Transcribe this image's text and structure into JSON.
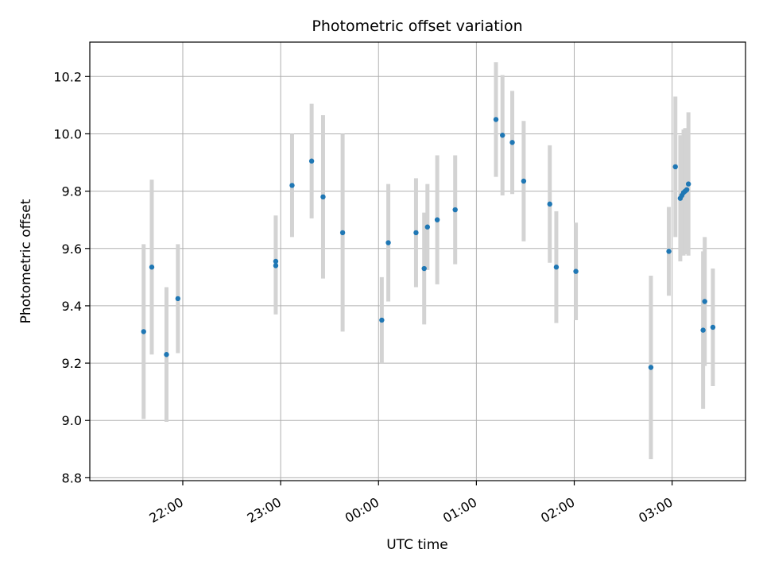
{
  "chart_data": {
    "type": "scatter",
    "title": "Photometric offset variation",
    "xlabel": "UTC time",
    "ylabel": "Photometric offset",
    "x_axis_kind": "time",
    "x_unit": "hours (UTC), times after midnight written past 24:00",
    "xlim": [
      "21:03",
      "27:45"
    ],
    "ylim": [
      8.79,
      10.32
    ],
    "x_ticks": [
      {
        "hour": 22,
        "label": "22:00"
      },
      {
        "hour": 23,
        "label": "23:00"
      },
      {
        "hour": 24,
        "label": "00:00"
      },
      {
        "hour": 25,
        "label": "01:00"
      },
      {
        "hour": 26,
        "label": "02:00"
      },
      {
        "hour": 27,
        "label": "03:00"
      }
    ],
    "y_ticks": [
      8.8,
      9.0,
      9.2,
      9.4,
      9.6,
      9.8,
      10.0,
      10.2
    ],
    "y_tick_labels": [
      "8.8",
      "9.0",
      "9.2",
      "9.4",
      "9.6",
      "9.8",
      "10.0",
      "10.2"
    ],
    "grid": true,
    "marker_color": "#1f77b4",
    "errorbar_color": "#d3d3d3",
    "points": [
      {
        "t": "21:36",
        "y": 9.31,
        "err": 0.305
      },
      {
        "t": "21:41",
        "y": 9.535,
        "err": 0.305
      },
      {
        "t": "21:50",
        "y": 9.23,
        "err": 0.235
      },
      {
        "t": "21:57",
        "y": 9.425,
        "err": 0.19
      },
      {
        "t": "22:57",
        "y": 9.54,
        "err": 0.17
      },
      {
        "t": "22:57",
        "y": 9.555,
        "err": 0.16
      },
      {
        "t": "23:07",
        "y": 9.82,
        "err": 0.18
      },
      {
        "t": "23:19",
        "y": 9.905,
        "err": 0.2
      },
      {
        "t": "23:26",
        "y": 9.78,
        "err": 0.285
      },
      {
        "t": "23:38",
        "y": 9.655,
        "err": 0.345
      },
      {
        "t": "24:02",
        "y": 9.35,
        "err": 0.15
      },
      {
        "t": "24:06",
        "y": 9.62,
        "err": 0.205
      },
      {
        "t": "24:23",
        "y": 9.655,
        "err": 0.19
      },
      {
        "t": "24:28",
        "y": 9.53,
        "err": 0.195
      },
      {
        "t": "24:30",
        "y": 9.675,
        "err": 0.15
      },
      {
        "t": "24:36",
        "y": 9.7,
        "err": 0.225
      },
      {
        "t": "24:47",
        "y": 9.735,
        "err": 0.19
      },
      {
        "t": "25:12",
        "y": 10.05,
        "err": 0.2
      },
      {
        "t": "25:16",
        "y": 9.995,
        "err": 0.21
      },
      {
        "t": "25:22",
        "y": 9.97,
        "err": 0.18
      },
      {
        "t": "25:29",
        "y": 9.835,
        "err": 0.21
      },
      {
        "t": "25:45",
        "y": 9.755,
        "err": 0.205
      },
      {
        "t": "25:49",
        "y": 9.535,
        "err": 0.195
      },
      {
        "t": "26:01",
        "y": 9.52,
        "err": 0.17
      },
      {
        "t": "26:47",
        "y": 9.185,
        "err": 0.32
      },
      {
        "t": "26:58",
        "y": 9.59,
        "err": 0.155
      },
      {
        "t": "27:02",
        "y": 9.885,
        "err": 0.245
      },
      {
        "t": "27:05",
        "y": 9.775,
        "err": 0.22
      },
      {
        "t": "27:06",
        "y": 9.785,
        "err": 0.2
      },
      {
        "t": "27:07",
        "y": 9.795,
        "err": 0.22
      },
      {
        "t": "27:08",
        "y": 9.8,
        "err": 0.22
      },
      {
        "t": "27:09",
        "y": 9.805,
        "err": 0.21
      },
      {
        "t": "27:10",
        "y": 9.825,
        "err": 0.25
      },
      {
        "t": "27:19",
        "y": 9.315,
        "err": 0.275
      },
      {
        "t": "27:20",
        "y": 9.415,
        "err": 0.225
      },
      {
        "t": "27:25",
        "y": 9.325,
        "err": 0.205
      }
    ]
  }
}
